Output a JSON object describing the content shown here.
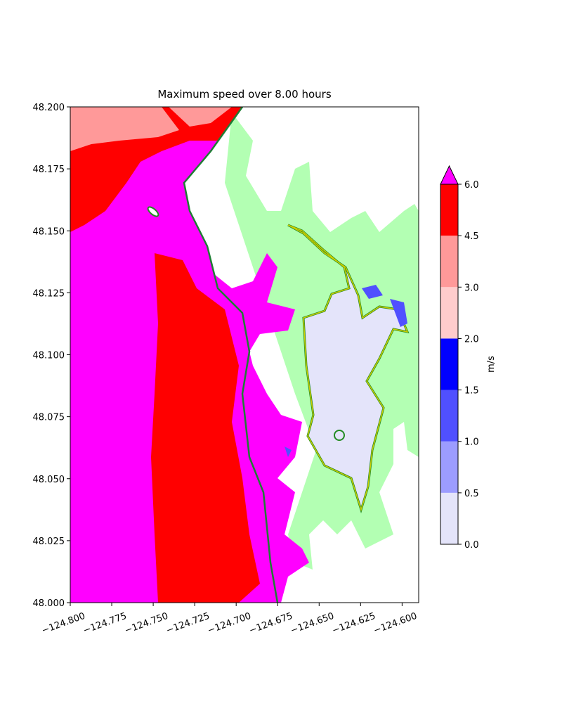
{
  "chart_data": {
    "type": "contourf",
    "title": "Maximum speed over 8.00 hours",
    "xlim": [
      -124.8,
      -124.59
    ],
    "ylim": [
      48.0,
      48.2
    ],
    "xticks": [
      {
        "value": -124.8,
        "label": "−124.800"
      },
      {
        "value": -124.775,
        "label": "−124.775"
      },
      {
        "value": -124.75,
        "label": "−124.750"
      },
      {
        "value": -124.725,
        "label": "−124.725"
      },
      {
        "value": -124.7,
        "label": "−124.700"
      },
      {
        "value": -124.675,
        "label": "−124.675"
      },
      {
        "value": -124.65,
        "label": "−124.650"
      },
      {
        "value": -124.625,
        "label": "−124.625"
      },
      {
        "value": -124.6,
        "label": "−124.600"
      }
    ],
    "yticks": [
      {
        "value": 48.0,
        "label": "48.000"
      },
      {
        "value": 48.025,
        "label": "48.025"
      },
      {
        "value": 48.05,
        "label": "48.050"
      },
      {
        "value": 48.075,
        "label": "48.075"
      },
      {
        "value": 48.1,
        "label": "48.100"
      },
      {
        "value": 48.125,
        "label": "48.125"
      },
      {
        "value": 48.15,
        "label": "48.150"
      },
      {
        "value": 48.175,
        "label": "48.175"
      },
      {
        "value": 48.2,
        "label": "48.200"
      }
    ],
    "colorbar": {
      "label": "m/s",
      "ticks": [
        {
          "value": 0,
          "label": "0.0"
        },
        {
          "value": 0.5,
          "label": "0.5"
        },
        {
          "value": 1,
          "label": "1.0"
        },
        {
          "value": 1.5,
          "label": "1.5"
        },
        {
          "value": 2,
          "label": "2.0"
        },
        {
          "value": 3,
          "label": "3.0"
        },
        {
          "value": 4.5,
          "label": "4.5"
        },
        {
          "value": 6,
          "label": "6.0"
        }
      ],
      "colors": [
        "#e4e4fa",
        "#9c9cff",
        "#5050ff",
        "#0000ff",
        "#ffcccc",
        "#ff9999",
        "#ff0000"
      ],
      "extend_color": "#ff00ff"
    }
  }
}
